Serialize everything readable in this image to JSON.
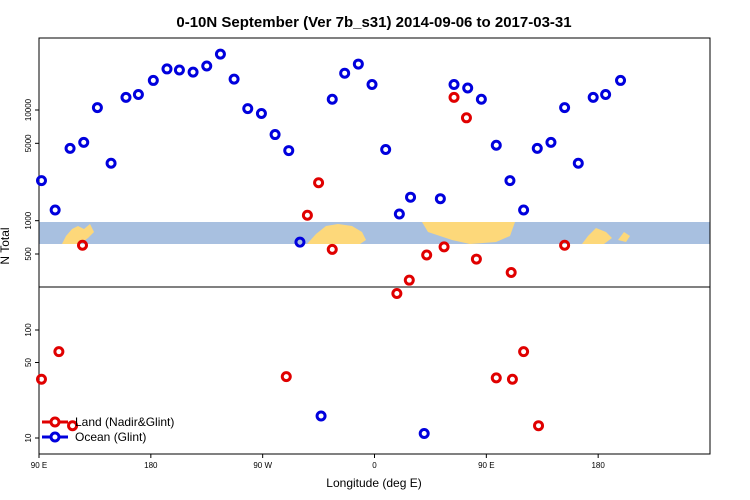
{
  "chart_data": {
    "type": "scatter",
    "title": "0-10N September (Ver 7b_s31)   2014-09-06 to 2017-03-31",
    "xlabel": "Longitude (deg E)",
    "ylabel": "N Total",
    "x_tick_labels": [
      "90 E",
      "180",
      "90 W",
      "0",
      "90 E",
      "180"
    ],
    "y_upper_ticks": [
      "500",
      "1000",
      "5000",
      "10000"
    ],
    "y_lower_ticks": [
      "10",
      "50",
      "100"
    ],
    "legend": {
      "position": "bottom-left",
      "entries": [
        {
          "label": "Land (Nadir&Glint)",
          "color": "#e00000"
        },
        {
          "label": "Ocean (Glint)",
          "color": "#0000dd"
        }
      ]
    },
    "colors": {
      "land": "#e00000",
      "ocean": "#0000dd",
      "map_water": "#a8c0e0",
      "map_land": "#fdd87a"
    },
    "series": [
      {
        "name": "Ocean (Glint)",
        "panel": "upper",
        "points": [
          {
            "x": 92,
            "y": 2300
          },
          {
            "x": 103,
            "y": 1250
          },
          {
            "x": 115,
            "y": 4500
          },
          {
            "x": 126,
            "y": 5100
          },
          {
            "x": 137,
            "y": 10500
          },
          {
            "x": 148,
            "y": 3300
          },
          {
            "x": 160,
            "y": 13000
          },
          {
            "x": 170,
            "y": 13800
          },
          {
            "x": 182,
            "y": 18500
          },
          {
            "x": 193,
            "y": 23500
          },
          {
            "x": 203,
            "y": 23000
          },
          {
            "x": 214,
            "y": 22000
          },
          {
            "x": 225,
            "y": 25000
          },
          {
            "x": 236,
            "y": 32000
          },
          {
            "x": 247,
            "y": 19000
          },
          {
            "x": 258,
            "y": 10300
          },
          {
            "x": 269,
            "y": 9300
          },
          {
            "x": 280,
            "y": 6000
          },
          {
            "x": 291,
            "y": 4300
          },
          {
            "x": 300,
            "y": 640
          },
          {
            "x": 326,
            "y": 12500
          },
          {
            "x": 336,
            "y": 21500
          },
          {
            "x": 347,
            "y": 26000
          },
          {
            "x": 358,
            "y": 17000
          },
          {
            "x": 369,
            "y": 4400
          },
          {
            "x": 380,
            "y": 1150
          },
          {
            "x": 389,
            "y": 1630
          },
          {
            "x": 413,
            "y": 1580
          },
          {
            "x": 424,
            "y": 17000
          },
          {
            "x": 435,
            "y": 15800
          },
          {
            "x": 446,
            "y": 12500
          },
          {
            "x": 458,
            "y": 4800
          },
          {
            "x": 469,
            "y": 2300
          },
          {
            "x": 480,
            "y": 1250
          },
          {
            "x": 491,
            "y": 4500
          },
          {
            "x": 502,
            "y": 5100
          },
          {
            "x": 513,
            "y": 10500
          },
          {
            "x": 524,
            "y": 3300
          },
          {
            "x": 536,
            "y": 13000
          },
          {
            "x": 546,
            "y": 13800
          },
          {
            "x": 558,
            "y": 18500
          }
        ]
      },
      {
        "name": "Ocean (Glint)",
        "panel": "lower",
        "points": [
          {
            "x": 317,
            "y": 16
          },
          {
            "x": 400,
            "y": 11
          }
        ]
      },
      {
        "name": "Land (Nadir&Glint)",
        "panel": "upper",
        "points": [
          {
            "x": 125,
            "y": 600
          },
          {
            "x": 306,
            "y": 1120
          },
          {
            "x": 315,
            "y": 2200
          },
          {
            "x": 326,
            "y": 550
          },
          {
            "x": 378,
            "y": 220
          },
          {
            "x": 388,
            "y": 290
          },
          {
            "x": 402,
            "y": 490
          },
          {
            "x": 416,
            "y": 580
          },
          {
            "x": 424,
            "y": 13000
          },
          {
            "x": 434,
            "y": 8500
          },
          {
            "x": 442,
            "y": 450
          },
          {
            "x": 470,
            "y": 340
          },
          {
            "x": 513,
            "y": 600
          }
        ]
      },
      {
        "name": "Land (Nadir&Glint)",
        "panel": "lower",
        "points": [
          {
            "x": 92,
            "y": 35
          },
          {
            "x": 106,
            "y": 63
          },
          {
            "x": 117,
            "y": 13
          },
          {
            "x": 289,
            "y": 37
          },
          {
            "x": 458,
            "y": 36
          },
          {
            "x": 471,
            "y": 35
          },
          {
            "x": 480,
            "y": 63
          },
          {
            "x": 492,
            "y": 13
          }
        ]
      }
    ]
  }
}
